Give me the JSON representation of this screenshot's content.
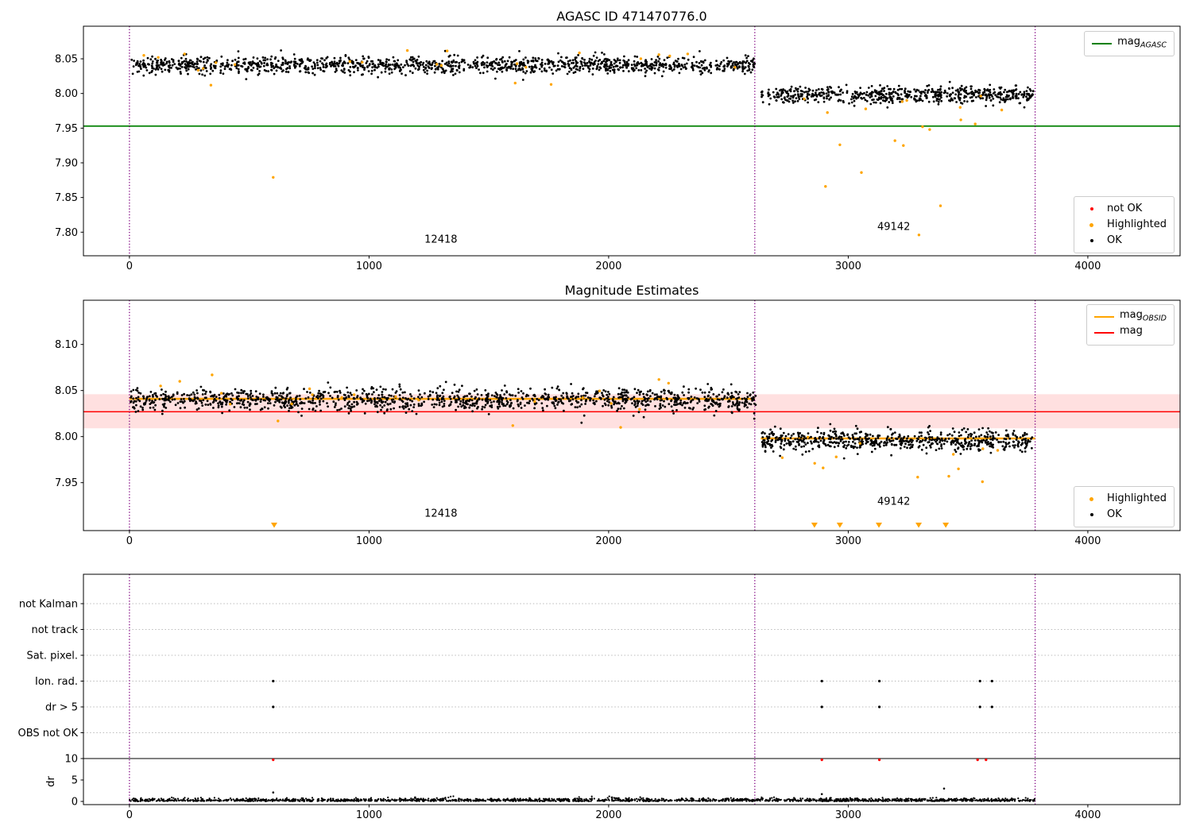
{
  "titles": {
    "chart1": "AGASC ID 471470776.0",
    "chart2": "Magnitude Estimates"
  },
  "legends": {
    "mag_agasc": {
      "main": "mag",
      "sub": "AGASC",
      "color": "#008000"
    },
    "quality1": {
      "items": [
        {
          "label": "not OK",
          "color": "#ff0000"
        },
        {
          "label": "Highlighted",
          "color": "#ffa500"
        },
        {
          "label": "OK",
          "color": "#000000"
        }
      ]
    },
    "mag_lines": {
      "items": [
        {
          "main": "mag",
          "sub": "OBSID",
          "color": "#ffa500"
        },
        {
          "main": "mag",
          "sub": "",
          "color": "#ff0000"
        }
      ]
    },
    "quality2": {
      "items": [
        {
          "label": "Highlighted",
          "color": "#ffa500"
        },
        {
          "label": "OK",
          "color": "#000000"
        }
      ]
    }
  },
  "chart_data": [
    {
      "type": "scatter",
      "title": "AGASC ID 471470776.0",
      "xlim": [
        -192,
        4385
      ],
      "ylim": [
        7.766,
        8.097
      ],
      "xticks": [
        0,
        1000,
        2000,
        3000,
        4000
      ],
      "yticks": [
        7.8,
        7.85,
        7.9,
        7.95,
        8.0,
        8.05
      ],
      "agasc_line": {
        "y": 7.953,
        "color": "#008000",
        "label": "mag_AGASC"
      },
      "vlines": {
        "x": [
          0,
          2610,
          3780
        ],
        "color": "#800080"
      },
      "obsid_labels": [
        {
          "text": "12418",
          "x": 1300,
          "y": 7.785
        },
        {
          "text": "49142",
          "x": 3190,
          "y": 7.803
        }
      ],
      "series": [
        {
          "name": "OK",
          "color": "#000000",
          "marker": "dot",
          "r": 1.4,
          "seed": 101,
          "clusters": [
            {
              "n": 1300,
              "x": [
                5,
                2615
              ],
              "mean": 8.041,
              "std": 0.0062
            },
            {
              "n": 620,
              "x": [
                2635,
                3775
              ],
              "mean": 7.998,
              "std": 0.0058
            }
          ],
          "points": []
        },
        {
          "name": "Highlighted",
          "color": "#ffa500",
          "marker": "dot",
          "r": 1.7,
          "seed": 202,
          "clusters": [
            {
              "n": 14,
              "x": [
                30,
                2600
              ],
              "mean": 8.044,
              "std": 0.009
            },
            {
              "n": 8,
              "x": [
                2660,
                3700
              ],
              "mean": 7.985,
              "std": 0.012
            }
          ],
          "points": [
            [
              60,
              8.055
            ],
            [
              120,
              8.052
            ],
            [
              230,
              8.057
            ],
            [
              1160,
              8.062
            ],
            [
              2210,
              8.056
            ],
            [
              2255,
              8.054
            ],
            [
              2330,
              8.057
            ],
            [
              340,
              8.012
            ],
            [
              1610,
              8.015
            ],
            [
              1760,
              8.013
            ],
            [
              600,
              7.879
            ],
            [
              2905,
              7.866
            ],
            [
              2965,
              7.926
            ],
            [
              3055,
              7.886
            ],
            [
              3195,
              7.932
            ],
            [
              3230,
              7.925
            ],
            [
              3295,
              7.796
            ],
            [
              3310,
              7.952
            ],
            [
              3340,
              7.948
            ],
            [
              3385,
              7.838
            ],
            [
              3470,
              7.962
            ],
            [
              3530,
              7.956
            ]
          ]
        }
      ]
    },
    {
      "type": "scatter",
      "title": "Magnitude Estimates",
      "xlim": [
        -192,
        4385
      ],
      "ylim": [
        7.898,
        8.148
      ],
      "xticks": [
        0,
        1000,
        2000,
        3000,
        4000
      ],
      "yticks": [
        7.95,
        8.0,
        8.05,
        8.1
      ],
      "mag_line": {
        "y": 8.027,
        "color": "#ff0000",
        "label": "mag"
      },
      "mag_band": {
        "y1": 8.009,
        "y2": 8.046,
        "color": "#ff0000",
        "opacity": 0.12
      },
      "obsid_line_color": "#ffa500",
      "obsid_lines": [
        {
          "x1": 0,
          "x2": 2610,
          "y": 8.041
        },
        {
          "x1": 2635,
          "x2": 3780,
          "y": 7.998
        }
      ],
      "vlines": {
        "x": [
          0,
          2610,
          3780
        ],
        "color": "#800080"
      },
      "obsid_labels": [
        {
          "text": "12418",
          "x": 1300,
          "y": 7.913
        },
        {
          "text": "49142",
          "x": 3190,
          "y": 7.926
        }
      ],
      "clip_triangles": {
        "x": [
          604,
          2859,
          2965,
          3128,
          3294,
          3407
        ],
        "y": 7.904,
        "color": "#ffa500"
      },
      "series": [
        {
          "name": "OK",
          "color": "#000000",
          "marker": "dot",
          "r": 1.4,
          "seed": 303,
          "clusters": [
            {
              "n": 1300,
              "x": [
                5,
                2615
              ],
              "mean": 8.04,
              "std": 0.0062
            },
            {
              "n": 620,
              "x": [
                2635,
                3775
              ],
              "mean": 7.996,
              "std": 0.0058
            }
          ],
          "points": []
        },
        {
          "name": "Highlighted",
          "color": "#ffa500",
          "marker": "dot",
          "r": 1.7,
          "seed": 404,
          "clusters": [
            {
              "n": 14,
              "x": [
                30,
                2600
              ],
              "mean": 8.043,
              "std": 0.009
            },
            {
              "n": 6,
              "x": [
                2660,
                3650
              ],
              "mean": 7.99,
              "std": 0.01
            }
          ],
          "points": [
            [
              345,
              8.067
            ],
            [
              210,
              8.06
            ],
            [
              130,
              8.055
            ],
            [
              2210,
              8.062
            ],
            [
              2250,
              8.058
            ],
            [
              620,
              8.017
            ],
            [
              1600,
              8.012
            ],
            [
              2050,
              8.01
            ],
            [
              2860,
              7.971
            ],
            [
              2895,
              7.966
            ],
            [
              2950,
              7.978
            ],
            [
              3290,
              7.956
            ],
            [
              3420,
              7.957
            ],
            [
              3460,
              7.965
            ],
            [
              3560,
              7.951
            ]
          ]
        }
      ]
    },
    {
      "type": "flags",
      "xlim": [
        -192,
        4385
      ],
      "xticks": [
        0,
        1000,
        2000,
        3000,
        4000
      ],
      "flag_labels": [
        "not Kalman",
        "not track",
        "Sat. pixel.",
        "Ion. rad.",
        "dr > 5",
        "OBS not OK"
      ],
      "flag_points": [
        {
          "row": 3,
          "x": [
            600,
            2890,
            3130,
            3550,
            3600
          ],
          "color": "#000000"
        },
        {
          "row": 4,
          "x": [
            600,
            2890,
            3130,
            3550,
            3600
          ],
          "color": "#000000"
        }
      ],
      "dr_axis": {
        "ylabel": "dr",
        "ticks": [
          0,
          5,
          10
        ],
        "cap_line": 10,
        "red_points": {
          "x": [
            600,
            2890,
            3130,
            3540,
            3575
          ],
          "value": 9.7,
          "color": "#ff0000"
        },
        "extra_points": [
          [
            600,
            2.1
          ],
          [
            2890,
            1.7
          ],
          [
            3400,
            3.0
          ]
        ],
        "scatter": {
          "n": 1900,
          "x": [
            0,
            3780
          ],
          "scale": 0.32,
          "seed": 505
        }
      },
      "vlines": {
        "x": [
          0,
          2610,
          3780
        ],
        "color": "#800080"
      }
    }
  ]
}
